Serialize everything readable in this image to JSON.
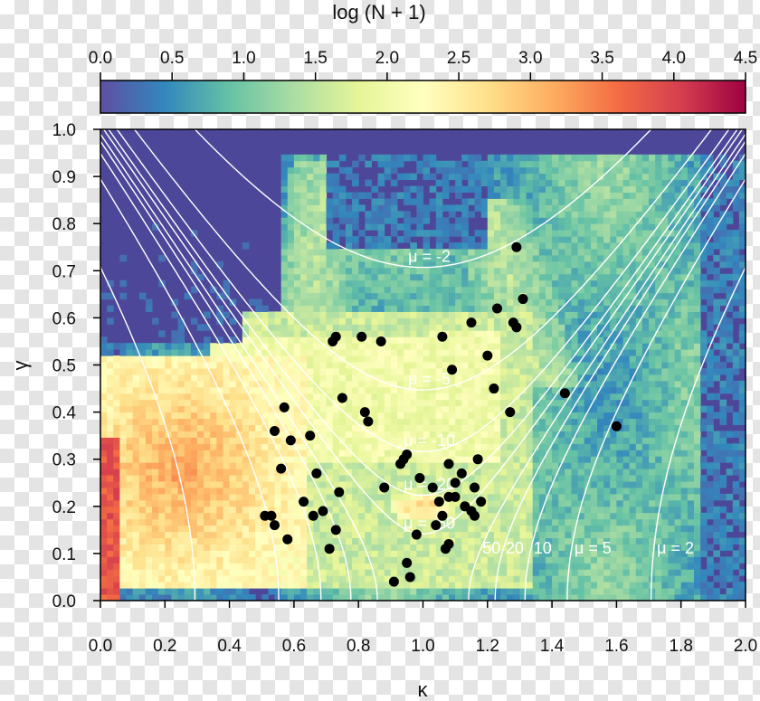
{
  "chart_data": {
    "type": "heatmap",
    "colorbar": {
      "title": "log (N + 1)",
      "range": [
        0,
        4.5
      ],
      "ticks": [
        "0.0",
        "0.5",
        "1.0",
        "1.5",
        "2.0",
        "2.5",
        "3.0",
        "3.5",
        "4.0",
        "4.5"
      ],
      "colormap": [
        "#5e4fa2",
        "#3288bd",
        "#66c2a5",
        "#abdda4",
        "#e6f598",
        "#ffffbf",
        "#fee08b",
        "#fdae61",
        "#f46d43",
        "#d53e4f",
        "#9e0142"
      ]
    },
    "xlabel": "κ",
    "ylabel": "γ",
    "xlim": [
      0,
      2
    ],
    "ylim": [
      0,
      1
    ],
    "x_ticks": [
      "0.0",
      "0.2",
      "0.4",
      "0.6",
      "0.8",
      "1.0",
      "1.2",
      "1.4",
      "1.6",
      "1.8",
      "2.0"
    ],
    "y_ticks": [
      "0.0",
      "0.1",
      "0.2",
      "0.3",
      "0.4",
      "0.5",
      "0.6",
      "0.7",
      "0.8",
      "0.9",
      "1.0"
    ],
    "contours": [
      {
        "mu": -2,
        "label": "μ = -2"
      },
      {
        "mu": -5,
        "label": "μ = -5"
      },
      {
        "mu": -10,
        "label": "μ = -10"
      },
      {
        "mu": -20,
        "label": "μ = -20"
      },
      {
        "mu": -50,
        "label": "μ = -50"
      },
      {
        "mu": 50,
        "label": "50"
      },
      {
        "mu": 20,
        "label": "20"
      },
      {
        "mu": 10,
        "label": "10"
      },
      {
        "mu": 5,
        "label": "μ = 5"
      },
      {
        "mu": 2,
        "label": "μ = 2"
      }
    ],
    "points": [
      [
        0.73,
        0.56
      ],
      [
        0.72,
        0.55
      ],
      [
        0.81,
        0.56
      ],
      [
        0.87,
        0.55
      ],
      [
        0.75,
        0.43
      ],
      [
        0.82,
        0.4
      ],
      [
        0.83,
        0.38
      ],
      [
        0.57,
        0.41
      ],
      [
        0.54,
        0.36
      ],
      [
        0.59,
        0.34
      ],
      [
        0.65,
        0.35
      ],
      [
        0.56,
        0.28
      ],
      [
        0.67,
        0.27
      ],
      [
        0.74,
        0.23
      ],
      [
        0.63,
        0.21
      ],
      [
        0.69,
        0.19
      ],
      [
        0.66,
        0.18
      ],
      [
        0.51,
        0.18
      ],
      [
        0.53,
        0.18
      ],
      [
        0.54,
        0.16
      ],
      [
        0.73,
        0.15
      ],
      [
        0.58,
        0.13
      ],
      [
        0.71,
        0.11
      ],
      [
        0.88,
        0.24
      ],
      [
        0.94,
        0.3
      ],
      [
        0.95,
        0.31
      ],
      [
        0.93,
        0.29
      ],
      [
        1.08,
        0.29
      ],
      [
        1.1,
        0.25
      ],
      [
        1.12,
        0.27
      ],
      [
        0.99,
        0.26
      ],
      [
        1.03,
        0.24
      ],
      [
        1.08,
        0.22
      ],
      [
        1.05,
        0.21
      ],
      [
        1.06,
        0.18
      ],
      [
        1.1,
        0.22
      ],
      [
        1.16,
        0.24
      ],
      [
        1.18,
        0.21
      ],
      [
        1.13,
        0.2
      ],
      [
        1.16,
        0.18
      ],
      [
        1.15,
        0.19
      ],
      [
        1.04,
        0.16
      ],
      [
        0.98,
        0.14
      ],
      [
        1.07,
        0.11
      ],
      [
        1.08,
        0.12
      ],
      [
        0.95,
        0.08
      ],
      [
        0.96,
        0.05
      ],
      [
        0.91,
        0.04
      ],
      [
        1.06,
        0.56
      ],
      [
        1.15,
        0.59
      ],
      [
        1.2,
        0.52
      ],
      [
        1.22,
        0.45
      ],
      [
        1.23,
        0.62
      ],
      [
        1.27,
        0.4
      ],
      [
        1.28,
        0.59
      ],
      [
        1.29,
        0.58
      ],
      [
        1.31,
        0.64
      ],
      [
        1.29,
        0.75
      ],
      [
        1.09,
        0.49
      ],
      [
        1.44,
        0.44
      ],
      [
        1.6,
        0.37
      ],
      [
        1.17,
        0.3
      ]
    ]
  }
}
